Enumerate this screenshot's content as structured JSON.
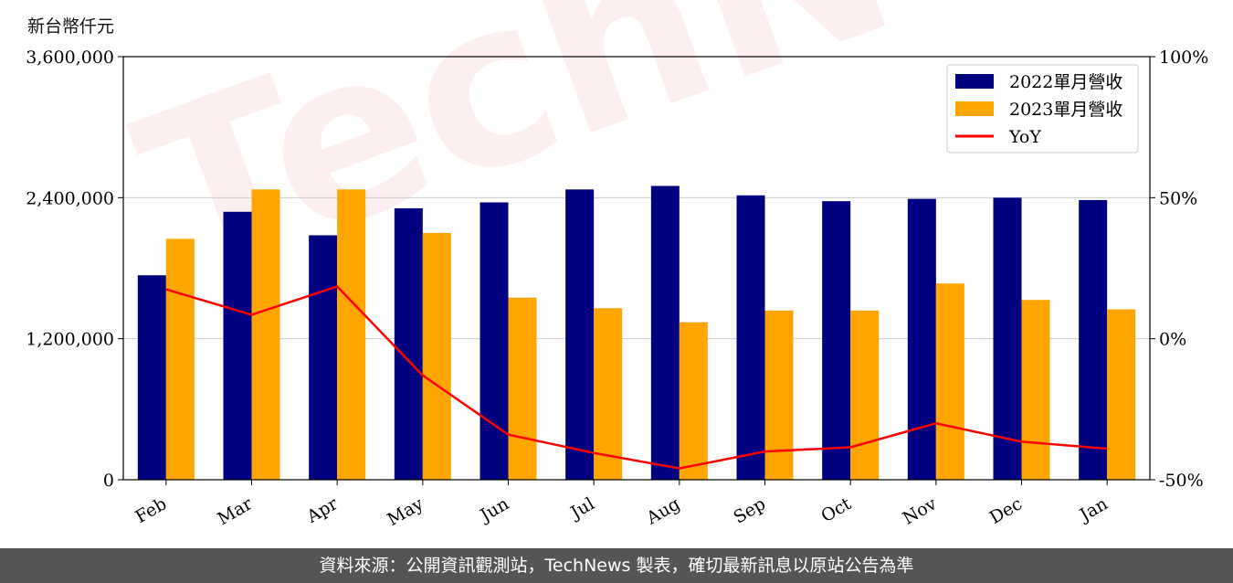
{
  "unit_label": "新台幣仟元",
  "watermark": "TechNews",
  "footer": "資料來源：公開資訊觀測站，TechNews 製表，確切最新訊息以原站公告為準",
  "chart_data": {
    "type": "bar",
    "categories": [
      "Feb",
      "Mar",
      "Apr",
      "May",
      "Jun",
      "Jul",
      "Aug",
      "Sep",
      "Oct",
      "Nov",
      "Dec",
      "Jan"
    ],
    "series": [
      {
        "name": "2022單月營收",
        "type": "bar",
        "color": "#000080",
        "values": [
          1740000,
          2280000,
          2080000,
          2310000,
          2360000,
          2470000,
          2500000,
          2420000,
          2370000,
          2390000,
          2400000,
          2380000
        ]
      },
      {
        "name": "2023單月營收",
        "type": "bar",
        "color": "#FFA500",
        "values": [
          2050000,
          2470000,
          2470000,
          2100000,
          1550000,
          1460000,
          1340000,
          1440000,
          1440000,
          1670000,
          1530000,
          1450000
        ]
      },
      {
        "name": "YoY",
        "type": "line",
        "axis": "right",
        "color": "#FF0000",
        "values": [
          17.5,
          8.5,
          18.5,
          -13,
          -34,
          -40.5,
          -46,
          -40,
          -38.5,
          -30,
          -36.5,
          -39
        ]
      }
    ],
    "ylim": [
      0,
      3600000
    ],
    "yticks": [
      "0",
      "1,200,000",
      "2,400,000",
      "3,600,000"
    ],
    "ytick_values": [
      0,
      1200000,
      2400000,
      3600000
    ],
    "y2lim": [
      -50,
      100
    ],
    "y2ticks": [
      "-50%",
      "0%",
      "50%",
      "100%"
    ],
    "y2tick_values": [
      -50,
      0,
      50,
      100
    ],
    "grid": "horizontal",
    "legend_position": "top-right"
  }
}
